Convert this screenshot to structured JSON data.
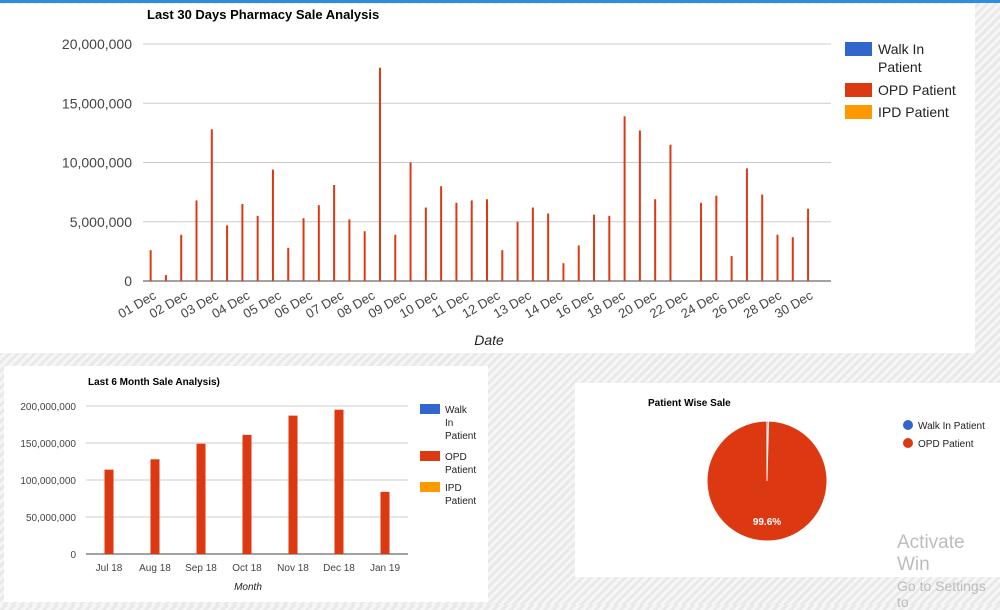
{
  "chart_data": [
    {
      "type": "bar",
      "title": "Last 30 Days Pharmacy Sale Analysis",
      "xlabel": "Date",
      "ylabel": "",
      "ylim": [
        0,
        20000000
      ],
      "yticks": [
        "0",
        "5,000,000",
        "10,000,000",
        "15,000,000",
        "20,000,000"
      ],
      "ytick_values": [
        0,
        5000000,
        10000000,
        15000000,
        20000000
      ],
      "grid": true,
      "legend_position": "right",
      "x_tick_labels": [
        "01 Dec",
        "02 Dec",
        "03 Dec",
        "04 Dec",
        "05 Dec",
        "06 Dec",
        "07 Dec",
        "08 Dec",
        "09 Dec",
        "10 Dec",
        "11 Dec",
        "12 Dec",
        "13 Dec",
        "14 Dec",
        "16 Dec",
        "18 Dec",
        "20 Dec",
        "22 Dec",
        "24 Dec",
        "26 Dec",
        "28 Dec",
        "30 Dec"
      ],
      "series": [
        {
          "name": "Walk In Patient",
          "color": "#3366cc",
          "values": [
            0,
            0,
            0,
            0,
            0,
            0,
            0,
            0,
            0,
            0,
            0,
            0,
            0,
            0,
            0,
            0,
            0,
            0,
            0,
            0,
            0,
            0,
            0,
            0,
            0,
            0,
            0,
            0,
            0,
            0,
            0,
            0,
            0,
            0,
            0,
            0,
            0,
            0,
            0,
            0,
            0,
            0,
            0,
            0,
            0
          ]
        },
        {
          "name": "OPD Patient",
          "color": "#dc3912",
          "values": [
            2600000,
            500000,
            3900000,
            6800000,
            12800000,
            4700000,
            6500000,
            5500000,
            9400000,
            2800000,
            5300000,
            6400000,
            8100000,
            5200000,
            4200000,
            18000000,
            3900000,
            10000000,
            6200000,
            8000000,
            6600000,
            6800000,
            6900000,
            2600000,
            5000000,
            6200000,
            5700000,
            1500000,
            3000000,
            5600000,
            5500000,
            13900000,
            12700000,
            6900000,
            11500000,
            0,
            6600000,
            7200000,
            2100000,
            9500000,
            7300000,
            3900000,
            3700000,
            6100000,
            0
          ]
        },
        {
          "name": "IPD Patient",
          "color": "#ff9900",
          "values": [
            0,
            0,
            0,
            0,
            0,
            0,
            0,
            0,
            0,
            0,
            0,
            0,
            0,
            0,
            0,
            0,
            0,
            0,
            0,
            0,
            0,
            0,
            0,
            0,
            0,
            0,
            0,
            0,
            0,
            0,
            0,
            0,
            0,
            0,
            0,
            0,
            0,
            0,
            0,
            0,
            0,
            0,
            0,
            0,
            0
          ]
        }
      ],
      "legend": [
        {
          "lines": [
            "Walk In",
            "Patient"
          ],
          "color": "#3366cc"
        },
        {
          "lines": [
            "OPD Patient"
          ],
          "color": "#dc3912"
        },
        {
          "lines": [
            "IPD Patient"
          ],
          "color": "#ff9900"
        }
      ]
    },
    {
      "type": "bar",
      "title": "Last 6 Month Sale Analysis)",
      "xlabel": "Month",
      "ylabel": "",
      "ylim": [
        0,
        200000000
      ],
      "yticks": [
        "0",
        "50,000,000",
        "100,000,000",
        "150,000,000",
        "200,000,000"
      ],
      "ytick_values": [
        0,
        50000000,
        100000000,
        150000000,
        200000000
      ],
      "grid": true,
      "legend_position": "right",
      "categories": [
        "Jul 18",
        "Aug 18",
        "Sep 18",
        "Oct 18",
        "Nov 18",
        "Dec 18",
        "Jan 19"
      ],
      "series": [
        {
          "name": "Walk In Patient",
          "color": "#3366cc",
          "values": [
            0,
            0,
            0,
            0,
            0,
            0,
            0
          ]
        },
        {
          "name": "OPD Patient",
          "color": "#dc3912",
          "values": [
            114000000,
            128000000,
            149000000,
            161000000,
            187000000,
            195000000,
            84000000
          ]
        },
        {
          "name": "IPD Patient",
          "color": "#ff9900",
          "values": [
            0,
            0,
            0,
            0,
            0,
            0,
            0
          ]
        }
      ],
      "legend": [
        {
          "lines": [
            "Walk",
            "In",
            "Patient"
          ],
          "color": "#3366cc"
        },
        {
          "lines": [
            "OPD",
            "Patient"
          ],
          "color": "#dc3912"
        },
        {
          "lines": [
            "IPD",
            "Patient"
          ],
          "color": "#ff9900"
        }
      ]
    },
    {
      "type": "pie",
      "title": "Patient Wise Sale",
      "labels": [
        "Walk In Patient",
        "OPD Patient"
      ],
      "values": [
        0.4,
        99.6
      ],
      "colors": [
        "#3366cc",
        "#dc3912"
      ],
      "data_label": "99.6%",
      "legend_position": "right"
    }
  ],
  "watermark": {
    "line1": "Activate Win",
    "line2": "Go to Settings to"
  }
}
